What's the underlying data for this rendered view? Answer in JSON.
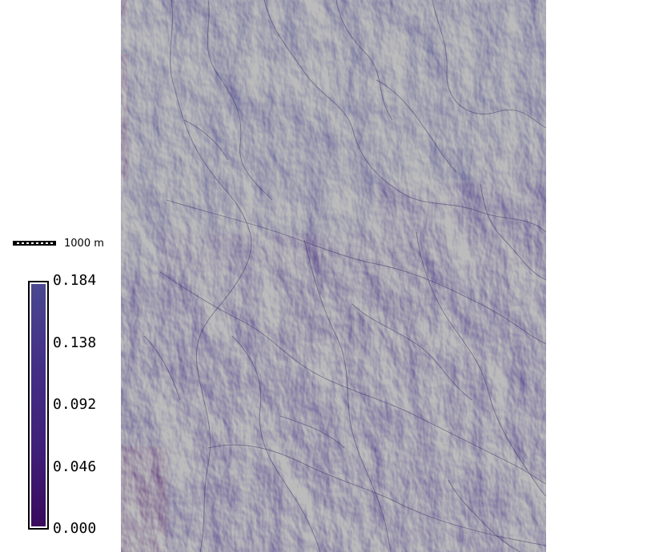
{
  "scalebar": {
    "label": "1000 m"
  },
  "legend": {
    "min": 0.0,
    "max": 0.184,
    "ticks": [
      "0.184",
      "0.138",
      "0.092",
      "0.046",
      "0.000"
    ],
    "colors": {
      "high": "#4a4890",
      "mid": "#432e86",
      "low": "#3a0a5e"
    }
  }
}
